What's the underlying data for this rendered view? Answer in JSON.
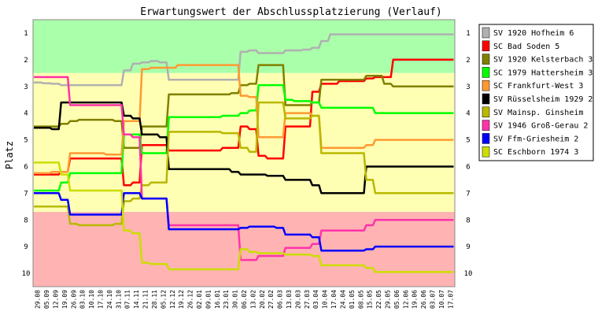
{
  "chart_data": {
    "type": "line",
    "title": "Erwartungswert der Abschlussplatzierung (Verlauf)",
    "ylabel": "Platz",
    "xlabel": "",
    "ylim": [
      1,
      10
    ],
    "y_inverted": true,
    "y_ticks": [
      "1",
      "2",
      "3",
      "4",
      "5",
      "6",
      "7",
      "8",
      "9",
      "10"
    ],
    "x": [
      "29.08",
      "05.09",
      "12.09",
      "19.09",
      "26.09",
      "03.10",
      "10.10",
      "17.10",
      "24.10",
      "31.10",
      "07.11",
      "14.11",
      "21.11",
      "28.11",
      "05.12",
      "12.12",
      "19.12",
      "26.12",
      "02.01",
      "09.01",
      "16.01",
      "23.01",
      "30.01",
      "06.02",
      "13.02",
      "20.02",
      "27.02",
      "06.03",
      "13.03",
      "20.03",
      "27.03",
      "03.04",
      "10.04",
      "17.04",
      "24.04",
      "01.05",
      "08.05",
      "15.05",
      "22.05",
      "29.05",
      "05.06",
      "12.06",
      "19.06",
      "26.06",
      "03.07",
      "10.07",
      "17.07"
    ],
    "legend_position": "right",
    "grid": false,
    "zones": [
      {
        "color": "#aaffaa",
        "from": 0.5,
        "to": 2.5
      },
      {
        "color": "#ffffb3",
        "from": 2.5,
        "to": 7.7
      },
      {
        "color": "#ffb3b3",
        "from": 7.7,
        "to": 10.5
      }
    ],
    "series": [
      {
        "name": "SV 1920 Hofheim 6",
        "color": "#b0b0b0",
        "values": [
          2.85,
          2.88,
          2.9,
          2.95,
          2.95,
          2.95,
          2.95,
          2.95,
          2.95,
          2.95,
          2.4,
          2.15,
          2.1,
          2.05,
          2.1,
          2.75,
          2.75,
          2.75,
          2.75,
          2.75,
          2.75,
          2.75,
          2.75,
          1.7,
          1.65,
          1.75,
          1.75,
          1.75,
          1.65,
          1.65,
          1.62,
          1.55,
          1.3,
          1.05,
          1.05,
          1.05,
          1.05,
          1.05,
          1.05,
          1.05,
          1.05,
          1.05,
          1.05,
          1.05,
          1.05,
          1.05,
          1.05
        ]
      },
      {
        "name": "SC Bad Soden 5",
        "color": "#ff0000",
        "values": [
          6.3,
          6.3,
          6.3,
          6.2,
          5.7,
          5.7,
          5.7,
          5.7,
          5.7,
          5.7,
          6.7,
          6.6,
          5.2,
          5.2,
          5.2,
          5.4,
          5.4,
          5.4,
          5.4,
          5.4,
          5.4,
          5.3,
          5.3,
          4.5,
          4.6,
          5.6,
          5.7,
          5.7,
          4.5,
          4.5,
          4.5,
          3.2,
          2.9,
          2.9,
          2.8,
          2.8,
          2.8,
          2.7,
          2.65,
          2.65,
          2.0,
          2.0,
          2.0,
          2.0,
          2.0,
          2.0,
          2.0
        ]
      },
      {
        "name": "SV 1920 Kelsterbach 3",
        "color": "#808000",
        "values": [
          4.5,
          4.5,
          4.5,
          4.4,
          4.3,
          4.25,
          4.25,
          4.25,
          4.25,
          4.3,
          5.3,
          5.3,
          4.5,
          4.5,
          4.5,
          3.3,
          3.3,
          3.3,
          3.3,
          3.3,
          3.3,
          3.3,
          3.25,
          2.95,
          2.9,
          2.2,
          2.2,
          2.2,
          3.7,
          3.7,
          3.7,
          3.6,
          2.75,
          2.75,
          2.75,
          2.75,
          2.75,
          2.6,
          2.6,
          2.9,
          3.0,
          3.0,
          3.0,
          3.0,
          3.0,
          3.0,
          3.0
        ]
      },
      {
        "name": "SC 1979 Hattersheim 3",
        "color": "#00ff00",
        "values": [
          6.9,
          6.9,
          6.9,
          6.6,
          6.25,
          6.25,
          6.25,
          6.25,
          6.25,
          6.25,
          4.8,
          4.8,
          5.5,
          5.5,
          5.5,
          4.15,
          4.15,
          4.15,
          4.15,
          4.15,
          4.15,
          4.1,
          4.1,
          4.0,
          3.9,
          2.95,
          2.95,
          2.95,
          3.5,
          3.55,
          3.55,
          3.6,
          3.8,
          3.8,
          3.8,
          3.8,
          3.8,
          3.8,
          4.0,
          4.0,
          4.0,
          4.0,
          4.0,
          4.0,
          4.0,
          4.0,
          4.0
        ]
      },
      {
        "name": "SC Frankfurt-West 3",
        "color": "#ff9933",
        "values": [
          6.25,
          6.25,
          6.2,
          6.2,
          5.5,
          5.5,
          5.5,
          5.5,
          5.55,
          5.55,
          4.3,
          4.3,
          2.35,
          2.3,
          2.3,
          2.3,
          2.2,
          2.2,
          2.2,
          2.2,
          2.2,
          2.2,
          2.2,
          3.35,
          3.4,
          4.9,
          4.9,
          4.9,
          4.0,
          4.0,
          4.0,
          4.1,
          5.3,
          5.3,
          5.3,
          5.3,
          5.3,
          5.2,
          5.0,
          5.0,
          5.0,
          5.0,
          5.0,
          5.0,
          5.0,
          5.0,
          5.0
        ]
      },
      {
        "name": "SV Rüsselsheim 1929 2",
        "color": "#000000",
        "values": [
          4.55,
          4.55,
          4.6,
          3.6,
          3.6,
          3.6,
          3.6,
          3.6,
          3.6,
          3.6,
          4.1,
          4.2,
          4.8,
          4.8,
          4.9,
          6.1,
          6.1,
          6.1,
          6.1,
          6.1,
          6.1,
          6.1,
          6.2,
          6.3,
          6.3,
          6.3,
          6.35,
          6.35,
          6.5,
          6.5,
          6.5,
          6.7,
          7.0,
          7.0,
          7.0,
          7.0,
          7.0,
          6.0,
          6.0,
          6.0,
          6.0,
          6.0,
          6.0,
          6.0,
          6.0,
          6.0,
          6.0
        ]
      },
      {
        "name": "SV Mainsp. Ginsheim",
        "color": "#b8b800",
        "values": [
          7.5,
          7.5,
          7.5,
          7.5,
          8.15,
          8.2,
          8.2,
          8.2,
          8.2,
          8.15,
          7.3,
          7.2,
          6.7,
          6.6,
          6.6,
          4.7,
          4.7,
          4.7,
          4.7,
          4.7,
          4.7,
          4.75,
          4.75,
          5.3,
          5.45,
          3.6,
          3.6,
          3.6,
          4.2,
          4.2,
          4.2,
          4.1,
          5.5,
          5.5,
          5.5,
          5.5,
          5.5,
          6.5,
          7.0,
          7.0,
          7.0,
          7.0,
          7.0,
          7.0,
          7.0,
          7.0,
          7.0
        ]
      },
      {
        "name": "SV 1946 Groß-Gerau 2",
        "color": "#ff33aa",
        "values": [
          2.65,
          2.65,
          2.65,
          2.65,
          3.7,
          3.7,
          3.7,
          3.7,
          3.7,
          3.7,
          4.8,
          4.9,
          7.2,
          7.2,
          7.2,
          8.2,
          8.2,
          8.2,
          8.2,
          8.2,
          8.2,
          8.2,
          8.2,
          9.5,
          9.5,
          9.35,
          9.35,
          9.35,
          9.05,
          9.05,
          9.05,
          8.9,
          8.4,
          8.4,
          8.4,
          8.4,
          8.4,
          8.2,
          8.0,
          8.0,
          8.0,
          8.0,
          8.0,
          8.0,
          8.0,
          8.0,
          8.0
        ]
      },
      {
        "name": "SV Ffm-Griesheim 2",
        "color": "#0000ff",
        "values": [
          7.0,
          7.0,
          7.0,
          7.25,
          7.8,
          7.8,
          7.8,
          7.8,
          7.8,
          7.8,
          7.0,
          7.0,
          7.2,
          7.2,
          7.2,
          8.35,
          8.35,
          8.35,
          8.35,
          8.35,
          8.35,
          8.35,
          8.35,
          8.3,
          8.25,
          8.25,
          8.25,
          8.3,
          8.55,
          8.55,
          8.55,
          8.65,
          9.15,
          9.15,
          9.15,
          9.15,
          9.15,
          9.1,
          9.0,
          9.0,
          9.0,
          9.0,
          9.0,
          9.0,
          9.0,
          9.0,
          9.0
        ]
      },
      {
        "name": "SC Eschborn 1974 3",
        "color": "#ccdd00",
        "values": [
          5.85,
          5.85,
          5.85,
          6.3,
          6.9,
          6.9,
          6.9,
          6.9,
          6.9,
          6.9,
          8.4,
          8.5,
          9.6,
          9.65,
          9.65,
          9.85,
          9.85,
          9.85,
          9.85,
          9.85,
          9.85,
          9.85,
          9.85,
          9.1,
          9.2,
          9.25,
          9.25,
          9.25,
          9.3,
          9.3,
          9.3,
          9.35,
          9.7,
          9.7,
          9.7,
          9.7,
          9.7,
          9.8,
          9.95,
          9.95,
          9.95,
          9.95,
          9.95,
          9.95,
          9.95,
          9.95,
          9.95
        ]
      }
    ]
  }
}
